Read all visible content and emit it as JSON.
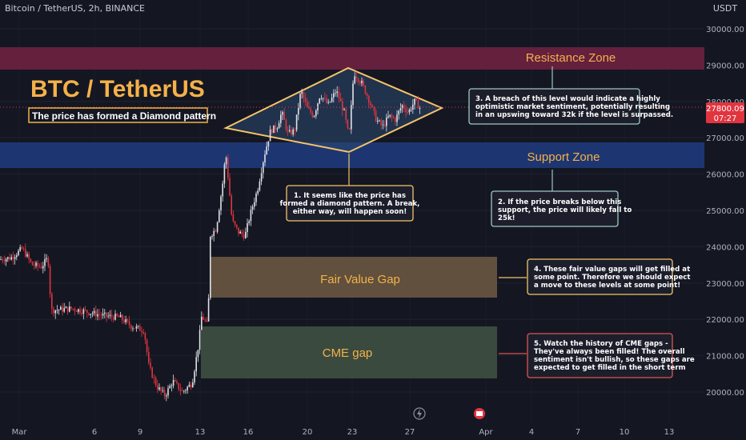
{
  "header": {
    "symbol_line": "Bitcoin / TetherUS, 2h, BINANCE",
    "currency": "USDT"
  },
  "price_badge": {
    "price": "27800.09",
    "countdown": "07:27"
  },
  "chart_data": {
    "type": "candlestick",
    "y_axis": {
      "ticks": [
        "30000.00",
        "29000.00",
        "28000.00",
        "27000.00",
        "26000.00",
        "25000.00",
        "24000.00",
        "23000.00",
        "22000.00",
        "21000.00",
        "20000.00"
      ],
      "range": [
        19400,
        30400
      ]
    },
    "x_axis": {
      "ticks": [
        "Mar",
        "6",
        "9",
        "13",
        "16",
        "20",
        "23",
        "27",
        "Apr",
        "4",
        "7",
        "10",
        "13"
      ]
    },
    "series_close_path": [
      [
        "Mar",
        23600
      ],
      [
        "Mar",
        23900
      ],
      [
        "Mar",
        23400
      ],
      [
        "Mar",
        23700
      ],
      [
        "6",
        22300
      ],
      [
        "6",
        22200
      ],
      [
        "9",
        21500
      ],
      [
        "9",
        20200
      ],
      [
        "9",
        19900
      ],
      [
        "13",
        20400
      ],
      [
        "13",
        21800
      ],
      [
        "13",
        24800
      ],
      [
        "13",
        26400
      ],
      [
        "16",
        24800
      ],
      [
        "16",
        25700
      ],
      [
        "16",
        26900
      ],
      [
        "20",
        27900
      ],
      [
        "20",
        27300
      ],
      [
        "23",
        28600
      ],
      [
        "23",
        27000
      ],
      [
        "23",
        28300
      ],
      [
        "27",
        27500
      ],
      [
        "27",
        28000
      ],
      [
        "27",
        27800
      ]
    ],
    "current_price": 27800.09,
    "zones": [
      {
        "name": "Resistance Zone",
        "from": 29500,
        "to": 28950,
        "color": "#7a2243"
      },
      {
        "name": "Support Zone",
        "from": 27000,
        "to": 26300,
        "color": "#1f3a7a"
      },
      {
        "name": "Fair Value Gap",
        "from": 23700,
        "to": 22600,
        "color": "#6b5840"
      },
      {
        "name": "CME gap",
        "from": 21800,
        "to": 20350,
        "color": "#3d4f42"
      }
    ]
  },
  "title": {
    "main": "BTC / TetherUS",
    "subtitle": "The price has formed a Diamond pattern"
  },
  "notes": [
    {
      "id": "1",
      "text": [
        "1. It seems like the price has",
        "formed a diamond pattern. A break,",
        "either way, will happen soon!"
      ]
    },
    {
      "id": "2",
      "text": [
        "2. If the price breaks below this",
        "support, the price will likely fall to",
        "25k!"
      ]
    },
    {
      "id": "3",
      "text": [
        "3. A breach of this level would indicate a highly",
        "optimistic market sentiment, potentially resulting",
        "in an upswing toward 32k if the level is surpassed."
      ]
    },
    {
      "id": "4",
      "text": [
        "4. These fair value gaps will get filled at",
        "some point. Therefore we should expect",
        "a move to these levels at some point!"
      ]
    },
    {
      "id": "5",
      "text": [
        "5. Watch the history of CME gaps -",
        "They've always been filled! The overall",
        "sentiment isn't bullish, so these gaps are",
        "expected to get filled in the short term"
      ]
    }
  ],
  "colors": {
    "bg": "#141722",
    "grid": "#1f2330",
    "up": "#e8e8e8",
    "down": "#e0353f",
    "accent_orange": "#f5b14a",
    "diamond_fill": "#2b4a70"
  }
}
